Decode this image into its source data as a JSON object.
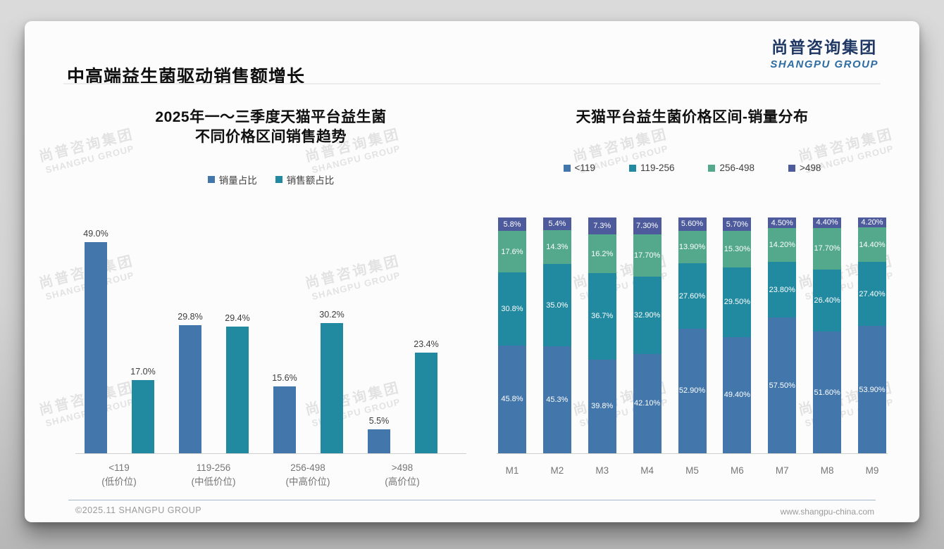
{
  "page": {
    "title": "中高端益生菌驱动销售额增长"
  },
  "logo": {
    "cn": "尚普咨询集团",
    "en": "SHANGPU GROUP"
  },
  "watermark": {
    "cn": "尚普咨询集团",
    "en": "SHANGPU GROUP"
  },
  "footer": {
    "left": "©2025.11 SHANGPU GROUP",
    "right": "www.shangpu-china.com"
  },
  "colors": {
    "blue": "#4377ac",
    "teal": "#2189a0",
    "green": "#54a88b",
    "navy": "#4d5b9d",
    "logo_navy": "#1f3864",
    "logo_blue": "#2d6da3"
  },
  "chart_data": [
    {
      "type": "bar",
      "title_line1": "2025年一～三季度天猫平台益生菌",
      "title_line2": "不同价格区间销售趋势",
      "unit": "%",
      "ylim": [
        0,
        52
      ],
      "legend_position": "top",
      "grid": false,
      "categories": [
        {
          "range": "<119",
          "desc": "(低价位)"
        },
        {
          "range": "119-256",
          "desc": "(中低价位)"
        },
        {
          "range": "256-498",
          "desc": "(中高价位)"
        },
        {
          "range": ">498",
          "desc": "(高价位)"
        }
      ],
      "series": [
        {
          "name": "销量占比",
          "color": "blue",
          "values": [
            49.0,
            29.8,
            15.6,
            5.5
          ],
          "labels": [
            "49.0%",
            "29.8%",
            "15.6%",
            "5.5%"
          ]
        },
        {
          "name": "销售额占比",
          "color": "teal",
          "values": [
            17.0,
            29.4,
            30.2,
            23.4
          ],
          "labels": [
            "17.0%",
            "29.4%",
            "30.2%",
            "23.4%"
          ]
        }
      ]
    },
    {
      "type": "stacked-bar",
      "title": "天猫平台益生菌价格区间-销量分布",
      "unit": "%",
      "ylim": [
        0,
        100
      ],
      "legend_position": "top",
      "grid": false,
      "categories": [
        "M1",
        "M2",
        "M3",
        "M4",
        "M5",
        "M6",
        "M7",
        "M8",
        "M9"
      ],
      "series": [
        {
          "name": "<119",
          "color": "blue",
          "values": [
            45.8,
            45.3,
            39.8,
            42.1,
            52.9,
            49.4,
            57.5,
            51.6,
            53.9
          ],
          "labels": [
            "45.8%",
            "45.3%",
            "39.8%",
            "42.10%",
            "52.90%",
            "49.40%",
            "57.50%",
            "51.60%",
            "53.90%"
          ]
        },
        {
          "name": "119-256",
          "color": "teal",
          "values": [
            30.8,
            35.0,
            36.7,
            32.9,
            27.6,
            29.5,
            23.8,
            26.4,
            27.4
          ],
          "labels": [
            "30.8%",
            "35.0%",
            "36.7%",
            "32.90%",
            "27.60%",
            "29.50%",
            "23.80%",
            "26.40%",
            "27.40%"
          ]
        },
        {
          "name": "256-498",
          "color": "green",
          "values": [
            17.6,
            14.3,
            16.2,
            17.7,
            13.9,
            15.3,
            14.2,
            17.7,
            14.4
          ],
          "labels": [
            "17.6%",
            "14.3%",
            "16.2%",
            "17.70%",
            "13.90%",
            "15.30%",
            "14.20%",
            "17.70%",
            "14.40%"
          ]
        },
        {
          "name": ">498",
          "color": "navy",
          "values": [
            5.8,
            5.4,
            7.3,
            7.3,
            5.6,
            5.7,
            4.5,
            4.4,
            4.2
          ],
          "labels": [
            "5.8%",
            "5.4%",
            "7.3%",
            "7.30%",
            "5.60%",
            "5.70%",
            "4.50%",
            "4.40%",
            "4.20%"
          ]
        }
      ]
    }
  ]
}
